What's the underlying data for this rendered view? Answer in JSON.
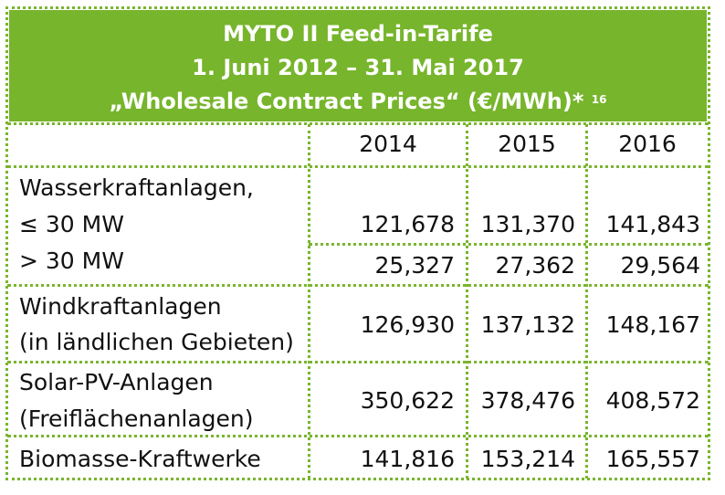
{
  "title": {
    "line1": "MYTO II Feed-in-Tarife",
    "line2": "1. Juni 2012 – 31. Mai 2017",
    "line3": "„Wholesale Contract Prices“ (€/MWh)*",
    "footnote": "16"
  },
  "columns": [
    "2014",
    "2015",
    "2016"
  ],
  "rows": [
    {
      "label": "Wasserkraftanlagen,"
    },
    {
      "label": "≤ 30 MW",
      "values": [
        "121,678",
        "131,370",
        "141,843"
      ]
    },
    {
      "label": "> 30 MW",
      "values": [
        "25,327",
        "27,362",
        "29,564"
      ]
    },
    {
      "label": "Windkraftanlagen",
      "label2": "(in ländlichen Gebieten)",
      "values": [
        "126,930",
        "137,132",
        "148,167"
      ]
    },
    {
      "label": "Solar-PV-Anlagen",
      "label2": "(Freiflächenanlagen)",
      "values": [
        "350,622",
        "378,476",
        "408,572"
      ]
    },
    {
      "label": "Biomasse-Kraftwerke",
      "values": [
        "141,816",
        "153,214",
        "165,557"
      ]
    }
  ],
  "colors": {
    "accent": "#77b52c"
  }
}
